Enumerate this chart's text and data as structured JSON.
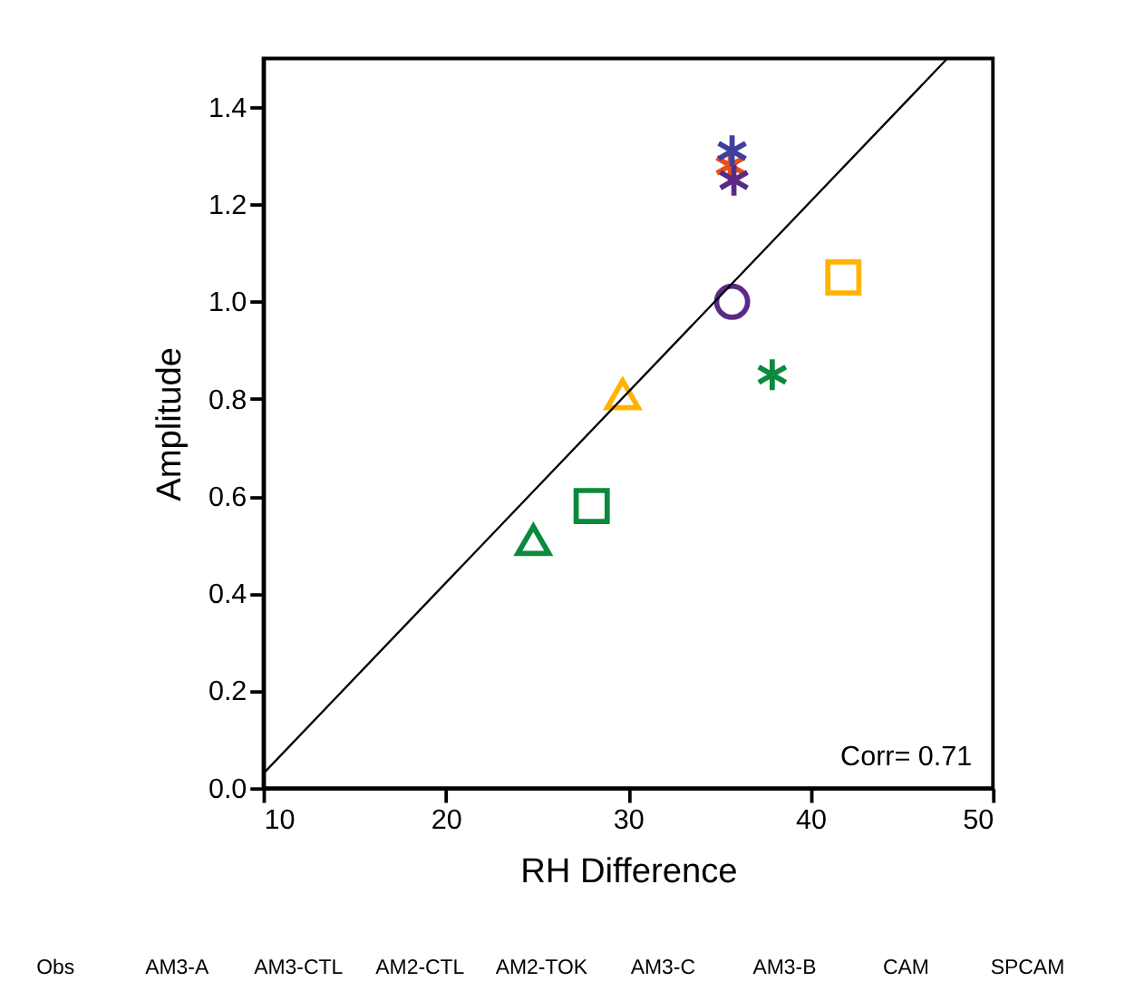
{
  "chart_data": {
    "type": "scatter",
    "xlabel": "RH Difference",
    "ylabel": "Amplitude",
    "xlim": [
      10,
      50
    ],
    "xticks": [
      10,
      20,
      30,
      40,
      50
    ],
    "ylim": [
      0,
      1.5
    ],
    "yticks": [
      {
        "value": 0,
        "label": "0.0"
      },
      0.2,
      0.4,
      0.6,
      0.8,
      {
        "value": 1,
        "label": "1.0"
      },
      1.2,
      1.4
    ],
    "grid": false,
    "series": [
      {
        "marker": "circle",
        "color": "#5b2a86",
        "x": [
          35.7
        ],
        "values": [
          1.0
        ]
      },
      {
        "marker": "square",
        "color": "#ffb300",
        "x": [
          41.8
        ],
        "values": [
          1.05
        ]
      },
      {
        "marker": "cross",
        "color": "#0a8a3c",
        "x": [
          37.9
        ],
        "values": [
          0.85
        ]
      },
      {
        "marker": "triangle",
        "color": "#ffb300",
        "x": [
          29.7
        ],
        "values": [
          0.81
        ]
      },
      {
        "marker": "square",
        "color": "#0a8a3c",
        "x": [
          28.0
        ],
        "values": [
          0.58
        ]
      },
      {
        "marker": "triangle",
        "color": "#0a8a3c",
        "x": [
          24.8
        ],
        "values": [
          0.51
        ]
      },
      {
        "marker": "cross",
        "color": "#e8501a",
        "x": [
          35.6
        ],
        "values": [
          1.28
        ]
      },
      {
        "marker": "cross",
        "color": "#5b2a86",
        "x": [
          35.8
        ],
        "values": [
          1.25
        ]
      },
      {
        "marker": "cross",
        "color": "#3f3fa0",
        "x": [
          35.7
        ],
        "values": [
          1.31
        ]
      },
      {
        "type": "line",
        "line_style": "solid",
        "color": "#000000",
        "x": [
          10,
          47.5
        ],
        "values": [
          0.03,
          1.5
        ]
      }
    ],
    "annotations": [
      "Corr= 0.71",
      "Obs",
      "AM3-A",
      "AM3-CTL",
      "AM2-CTL",
      "AM2-TOK",
      "AM3-C",
      "AM3-B",
      "CAM",
      "SPCAM"
    ]
  }
}
